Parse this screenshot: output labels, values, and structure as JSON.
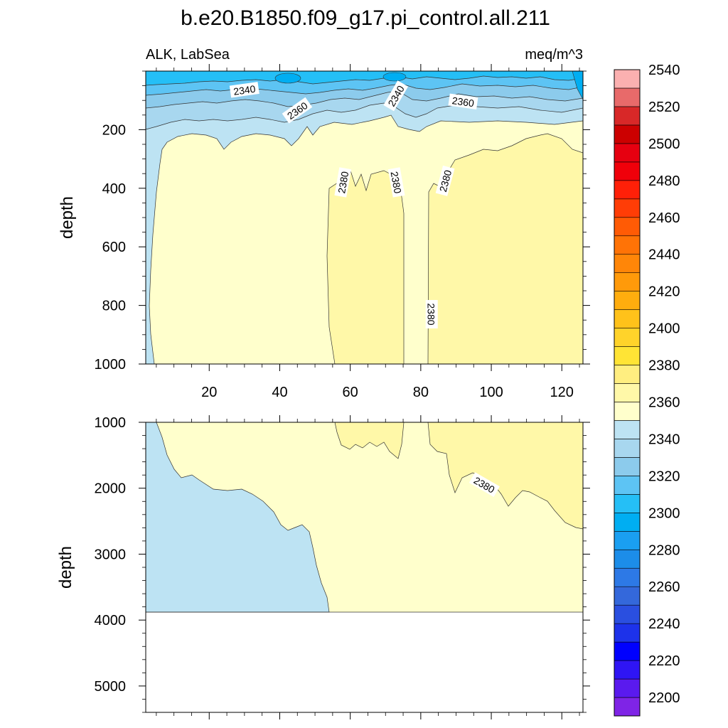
{
  "chart_data": {
    "type": "heatmap",
    "title": "b.e20.B1850.f09_g17.pi_control.all.211",
    "left_subtitle": "ALK, LabSea",
    "right_subtitle": "meq/m^3",
    "colorbar": {
      "levels": [
        2200,
        2210,
        2220,
        2230,
        2240,
        2250,
        2260,
        2270,
        2280,
        2290,
        2300,
        2310,
        2320,
        2330,
        2340,
        2350,
        2360,
        2370,
        2380,
        2390,
        2400,
        2410,
        2420,
        2430,
        2440,
        2450,
        2460,
        2470,
        2480,
        2490,
        2500,
        2510,
        2520,
        2530,
        2540,
        2550
      ],
      "labels": [
        "2200",
        "2220",
        "2240",
        "2260",
        "2280",
        "2300",
        "2320",
        "2340",
        "2360",
        "2380",
        "2400",
        "2420",
        "2440",
        "2460",
        "2480",
        "2500",
        "2520",
        "2540"
      ],
      "colors": [
        "#7f24e6",
        "#5a1aee",
        "#2f15f4",
        "#0000fe",
        "#1d32ea",
        "#2a4fe0",
        "#3468db",
        "#2d79e6",
        "#1c8de9",
        "#1a9ff1",
        "#00aef2",
        "#25bff6",
        "#5dc4f4",
        "#8ccbec",
        "#a8d7ef",
        "#bde3f3",
        "#ffffcc",
        "#fff8a8",
        "#ffee80",
        "#ffe435",
        "#ffd32a",
        "#ffc21a",
        "#ffad0e",
        "#ff9a0a",
        "#ff8608",
        "#ff7306",
        "#ff5b05",
        "#ff3d06",
        "#ff2008",
        "#f0000a",
        "#e60010",
        "#cc0000",
        "#d82828",
        "#e86a6a",
        "#fbb0b0"
      ]
    },
    "panels": [
      {
        "name": "upper",
        "x_range": [
          2,
          126
        ],
        "y_range": [
          0,
          1000
        ],
        "ylabel": "depth",
        "x_ticks": [
          20,
          40,
          60,
          80,
          100,
          120
        ],
        "x_tick_labels": [
          "20",
          "40",
          "60",
          "80",
          "100",
          "120"
        ],
        "y_ticks": [
          200,
          400,
          600,
          800,
          1000
        ],
        "y_tick_labels": [
          "200",
          "400",
          "600",
          "800",
          "1000"
        ],
        "contour_labels": [
          {
            "text": "2340",
            "x": 30,
            "y": 65
          },
          {
            "text": "2360",
            "x": 45,
            "y": 135
          },
          {
            "text": "2340",
            "x": 73,
            "y": 85
          },
          {
            "text": "2360",
            "x": 92,
            "y": 105
          },
          {
            "text": "2380",
            "x": 58,
            "y": 380
          },
          {
            "text": "2380",
            "x": 73,
            "y": 380
          },
          {
            "text": "2380",
            "x": 87,
            "y": 375
          },
          {
            "text": "2380",
            "x": 83,
            "y": 830
          }
        ]
      },
      {
        "name": "lower",
        "x_range": [
          2,
          126
        ],
        "y_range": [
          1000,
          5400
        ],
        "ylabel": "depth",
        "y_ticks": [
          1000,
          2000,
          3000,
          4000,
          5000
        ],
        "y_tick_labels": [
          "1000",
          "2000",
          "3000",
          "4000",
          "5000"
        ],
        "sea_floor_depth": 3870,
        "contour_labels": [
          {
            "text": "2380",
            "x": 98,
            "y": 1950
          }
        ]
      }
    ]
  }
}
